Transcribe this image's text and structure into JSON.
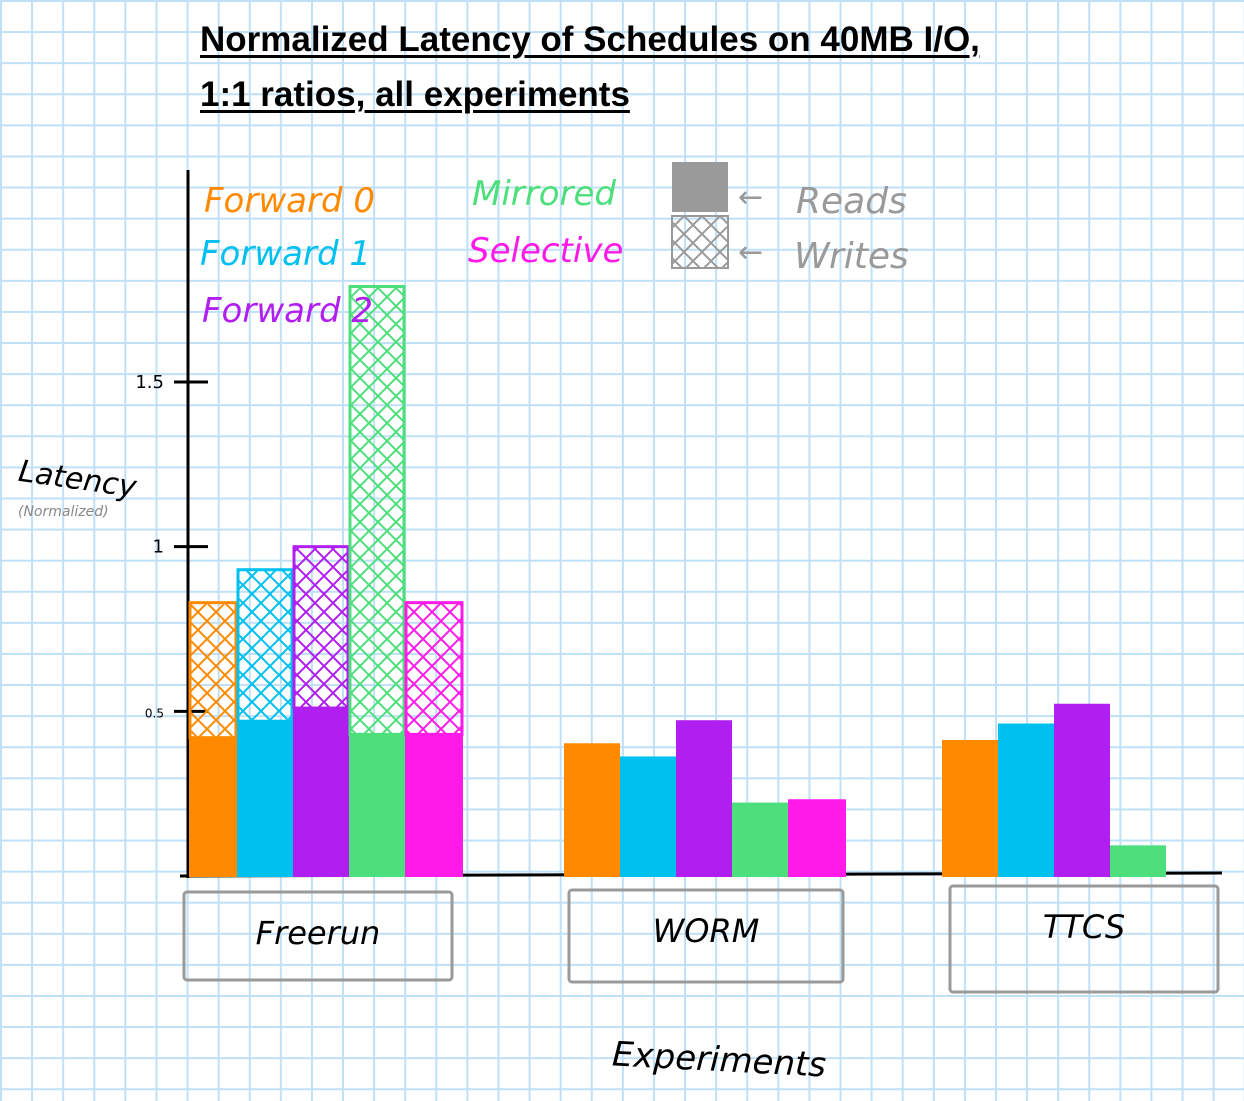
{
  "chart_data": {
    "type": "bar",
    "title_line1": "Normalized Latency of Schedules on 40MB I/O,",
    "title_line2": "1:1 ratios, all experiments",
    "xlabel": "Experiments",
    "ylabel": "Latency",
    "ylabel_sub": "(Normalized)",
    "yticks": [
      {
        "value": 0.5,
        "label": "0.5"
      },
      {
        "value": 1,
        "label": "1"
      },
      {
        "value": 1.5,
        "label": "1.5"
      }
    ],
    "ylim": [
      0,
      1.6
    ],
    "categories": [
      "Freerun",
      "WORM",
      "TTCS"
    ],
    "series": [
      {
        "name": "Forward 0",
        "color": "#ff8a00",
        "reads": [
          0.42,
          0.4,
          0.41
        ],
        "writes": [
          0.41,
          0,
          0
        ]
      },
      {
        "name": "Forward 1",
        "color": "#00c0f0",
        "reads": [
          0.47,
          0.36,
          0.46
        ],
        "writes": [
          0.46,
          0,
          0
        ]
      },
      {
        "name": "Forward 2",
        "color": "#b01ff0",
        "reads": [
          0.51,
          0.47,
          0.52
        ],
        "writes": [
          0.49,
          0,
          0
        ]
      },
      {
        "name": "Mirrored",
        "color": "#4ddf7c",
        "reads": [
          0.43,
          0.22,
          0.09
        ],
        "writes": [
          1.36,
          0,
          0
        ]
      },
      {
        "name": "Selective",
        "color": "#ff1ae8",
        "reads": [
          0.43,
          0.23,
          0
        ],
        "writes": [
          0.4,
          0,
          0
        ]
      }
    ],
    "legend_style": {
      "reads_label": "Reads",
      "writes_label": "Writes",
      "swatch_color": "#9a9a9a"
    },
    "grid": true,
    "legend_position": "top-left"
  }
}
